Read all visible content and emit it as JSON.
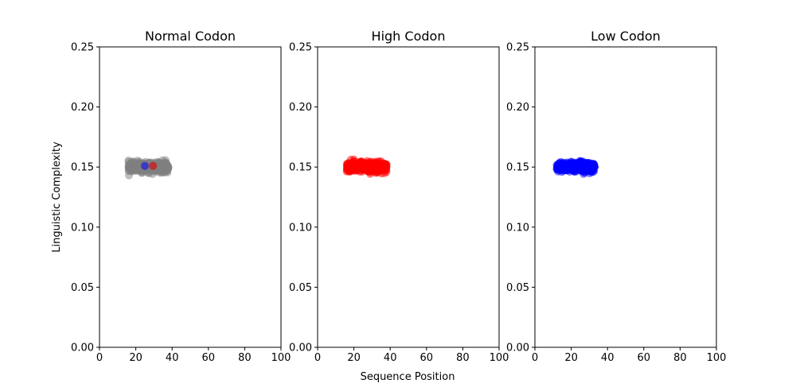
{
  "chart_data": [
    {
      "type": "scatter",
      "title": "Normal Codon",
      "xlim": [
        0,
        100
      ],
      "ylim": [
        0,
        0.25
      ],
      "x_ticks": [
        "0",
        "20",
        "40",
        "60",
        "80",
        "100"
      ],
      "y_ticks": [
        "0.00",
        "0.05",
        "0.10",
        "0.15",
        "0.20",
        "0.25"
      ],
      "series": [
        {
          "color": "#808080",
          "alpha": 0.5,
          "x_range": [
            16,
            38
          ],
          "y_range": [
            0.143,
            0.157
          ],
          "approx_count": 400
        },
        {
          "color": "#2a2ad0",
          "alpha": 0.8,
          "points": [
            [
              25,
              0.151
            ]
          ]
        },
        {
          "color": "#c81e1e",
          "alpha": 0.8,
          "points": [
            [
              29.5,
              0.151
            ]
          ]
        }
      ]
    },
    {
      "type": "scatter",
      "title": "High Codon",
      "xlim": [
        0,
        100
      ],
      "ylim": [
        0,
        0.25
      ],
      "x_ticks": [
        "0",
        "20",
        "40",
        "60",
        "80",
        "100"
      ],
      "y_ticks": [
        "0.00",
        "0.05",
        "0.10",
        "0.15",
        "0.20",
        "0.25"
      ],
      "series": [
        {
          "color": "#ff0000",
          "alpha": 0.5,
          "x_range": [
            16,
            38
          ],
          "y_range": [
            0.143,
            0.157
          ],
          "approx_count": 400
        }
      ]
    },
    {
      "type": "scatter",
      "title": "Low Codon",
      "xlim": [
        0,
        100
      ],
      "ylim": [
        0,
        0.25
      ],
      "x_ticks": [
        "0",
        "20",
        "40",
        "60",
        "80",
        "100"
      ],
      "y_ticks": [
        "0.00",
        "0.05",
        "0.10",
        "0.15",
        "0.20",
        "0.25"
      ],
      "series": [
        {
          "color": "#0000ff",
          "alpha": 0.5,
          "x_range": [
            12,
            33
          ],
          "y_range": [
            0.143,
            0.157
          ],
          "approx_count": 400
        }
      ]
    }
  ],
  "xlabel": "Sequence Position",
  "ylabel": "Linguistic Complexity"
}
